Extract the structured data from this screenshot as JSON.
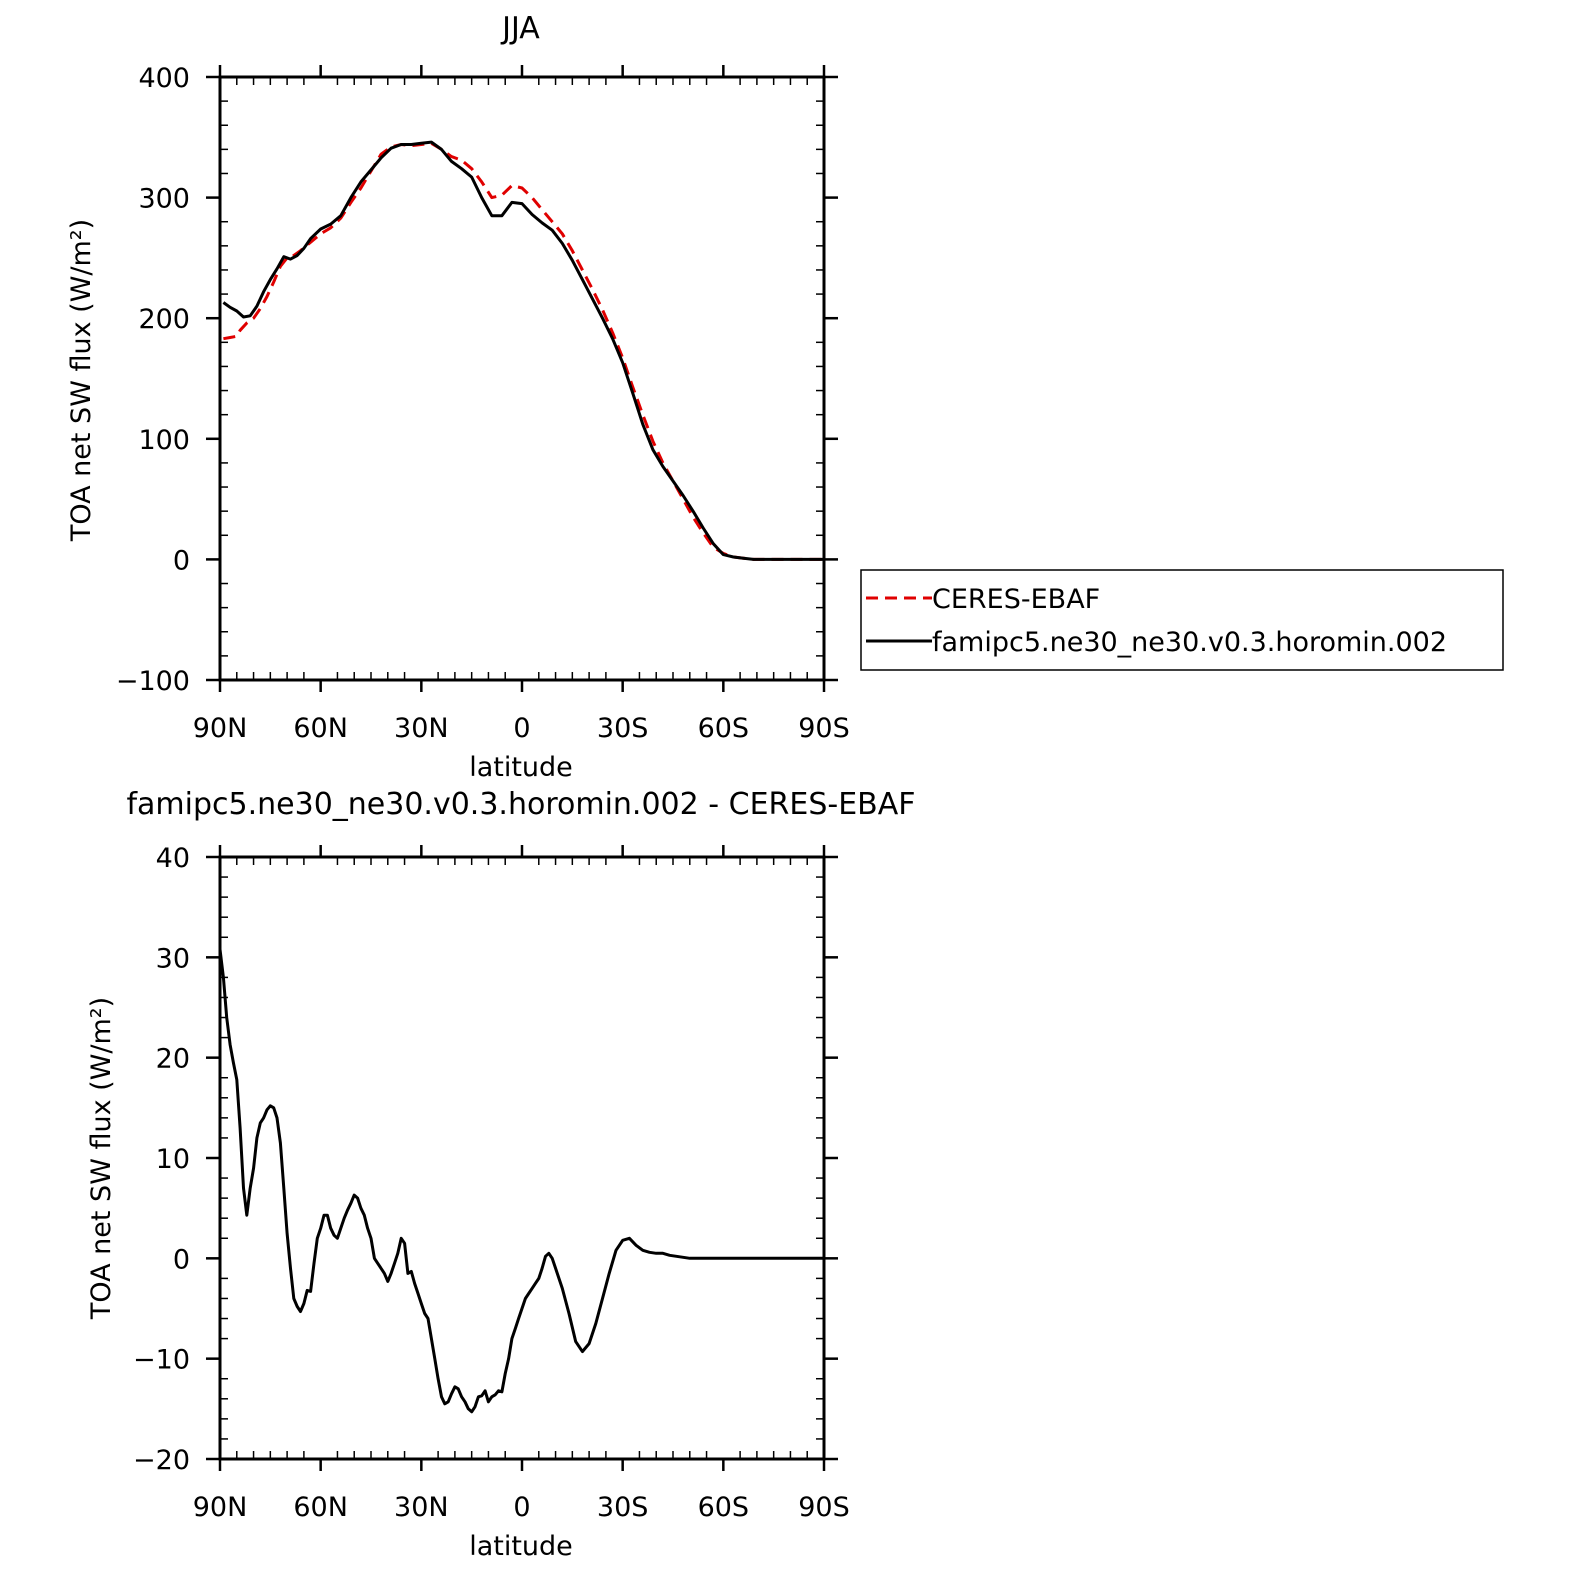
{
  "chart_data": [
    {
      "type": "line",
      "title": "JJA",
      "xlabel": "latitude",
      "ylabel": "TOA net SW flux (W/m²)",
      "ylim": [
        -100,
        400
      ],
      "xlim": [
        90,
        -90
      ],
      "yticks": [
        -100,
        0,
        100,
        200,
        300,
        400
      ],
      "xticks": [
        90,
        60,
        30,
        0,
        -30,
        -60,
        -90
      ],
      "xtick_labels": [
        "90N",
        "60N",
        "30N",
        "0",
        "30S",
        "60S",
        "90S"
      ],
      "legend": {
        "placement": "right-outside"
      },
      "series": [
        {
          "name": "CERES-EBAF",
          "color": "#e00000",
          "style": "dashed",
          "x": [
            89,
            87,
            85,
            84,
            82,
            80,
            78,
            76,
            74,
            72,
            70,
            68,
            66,
            63,
            60,
            57,
            54,
            51,
            48,
            45,
            42,
            39,
            36,
            33,
            30,
            27,
            24,
            21,
            18,
            15,
            12,
            9,
            6,
            3,
            0,
            -3,
            -6,
            -9,
            -12,
            -15,
            -18,
            -21,
            -24,
            -27,
            -30,
            -33,
            -36,
            -39,
            -42,
            -45,
            -48,
            -51,
            -54,
            -57,
            -60,
            -63,
            -66,
            -69,
            -72,
            -75,
            -78,
            -81,
            -84,
            -87,
            -90
          ],
          "y": [
            183,
            184,
            185,
            190,
            196,
            200,
            208,
            218,
            230,
            243,
            250,
            252,
            256,
            263,
            270,
            275,
            283,
            296,
            308,
            322,
            336,
            342,
            344,
            343,
            344,
            345,
            340,
            334,
            331,
            324,
            313,
            300,
            302,
            310,
            308,
            300,
            290,
            280,
            270,
            256,
            240,
            224,
            207,
            188,
            167,
            143,
            120,
            98,
            80,
            65,
            50,
            35,
            22,
            10,
            5,
            2,
            1,
            0,
            0,
            0,
            0,
            0,
            0,
            0,
            0
          ]
        },
        {
          "name": "famipc5.ne30_ne30.v0.3.horomin.002",
          "color": "#000000",
          "style": "solid",
          "x": [
            89,
            87,
            85,
            83,
            81,
            79,
            77,
            75,
            73,
            71,
            69,
            67,
            65,
            63,
            60,
            57,
            54,
            51,
            48,
            45,
            42,
            39,
            36,
            33,
            30,
            27,
            24,
            21,
            18,
            15,
            12,
            9,
            6,
            3,
            0,
            -3,
            -6,
            -9,
            -12,
            -15,
            -18,
            -21,
            -24,
            -27,
            -30,
            -33,
            -36,
            -39,
            -42,
            -45,
            -48,
            -51,
            -54,
            -57,
            -60,
            -63,
            -66,
            -69,
            -72,
            -75,
            -78,
            -81,
            -84,
            -87,
            -90
          ],
          "y": [
            213,
            209,
            206,
            201,
            202,
            210,
            222,
            232,
            241,
            251,
            249,
            252,
            258,
            266,
            274,
            278,
            285,
            300,
            313,
            323,
            333,
            341,
            344,
            344,
            345,
            346,
            340,
            330,
            324,
            317,
            300,
            285,
            285,
            296,
            295,
            286,
            279,
            273,
            262,
            248,
            232,
            216,
            200,
            183,
            163,
            138,
            112,
            91,
            77,
            65,
            53,
            40,
            26,
            13,
            4,
            2,
            1,
            0,
            0,
            0,
            0,
            0,
            0,
            0,
            0
          ]
        }
      ]
    },
    {
      "type": "line",
      "title": "famipc5.ne30_ne30.v0.3.horomin.002 - CERES-EBAF",
      "xlabel": "latitude",
      "ylabel": "TOA net SW flux (W/m²)",
      "ylim": [
        -20,
        40
      ],
      "xlim": [
        90,
        -90
      ],
      "yticks": [
        -20,
        -10,
        0,
        10,
        20,
        30,
        40
      ],
      "xticks": [
        90,
        60,
        30,
        0,
        -30,
        -60,
        -90
      ],
      "xtick_labels": [
        "90N",
        "60N",
        "30N",
        "0",
        "30S",
        "60S",
        "90S"
      ],
      "series": [
        {
          "name": "",
          "color": "#000000",
          "style": "solid",
          "x": [
            90,
            89,
            88,
            87,
            86,
            85,
            84,
            83,
            82,
            81,
            80,
            79,
            78,
            77,
            76,
            75,
            74,
            73,
            72,
            71,
            70,
            69,
            68,
            67,
            66,
            65,
            64,
            63,
            62,
            61,
            60,
            59,
            58,
            57,
            56,
            55,
            54,
            53,
            52,
            51,
            50,
            49,
            48,
            47,
            46,
            45,
            44,
            43,
            42,
            41,
            40,
            39,
            38,
            37,
            36,
            35,
            34,
            33,
            32,
            31,
            30,
            29,
            28,
            27,
            26,
            25,
            24,
            23,
            22,
            21,
            20,
            19,
            18,
            17,
            16,
            15,
            14,
            13,
            12,
            11,
            10,
            9,
            8,
            7,
            6,
            5,
            4,
            3,
            2,
            1,
            0,
            -1,
            -2,
            -3,
            -4,
            -5,
            -6,
            -7,
            -8,
            -9,
            -10,
            -12,
            -14,
            -16,
            -18,
            -20,
            -22,
            -24,
            -26,
            -28,
            -30,
            -32,
            -34,
            -36,
            -38,
            -40,
            -42,
            -44,
            -46,
            -48,
            -50,
            -52,
            -54,
            -56,
            -58,
            -60,
            -62,
            -64,
            -66,
            -68,
            -70,
            -72,
            -74,
            -76,
            -78,
            -80,
            -82,
            -84,
            -86,
            -88,
            -90
          ],
          "y": [
            30.8,
            28,
            24,
            21.3,
            19.5,
            17.8,
            13,
            7,
            4.3,
            7,
            9,
            12,
            13.5,
            14,
            14.8,
            15.2,
            15,
            14,
            11.5,
            7,
            2.5,
            -1,
            -4,
            -4.8,
            -5.3,
            -4.5,
            -3.2,
            -3.3,
            -0.5,
            2,
            3,
            4.3,
            4.3,
            3,
            2.3,
            2,
            3,
            4,
            4.8,
            5.5,
            6.3,
            6,
            5,
            4.3,
            3,
            2,
            0,
            -0.5,
            -1,
            -1.5,
            -2.3,
            -1.5,
            -0.5,
            0.5,
            2,
            1.5,
            -1.5,
            -1.3,
            -2.5,
            -3.5,
            -4.5,
            -5.5,
            -6,
            -8,
            -10,
            -12,
            -13.8,
            -14.5,
            -14.3,
            -13.5,
            -12.8,
            -13,
            -13.8,
            -14.3,
            -15,
            -15.3,
            -14.8,
            -13.8,
            -13.7,
            -13.2,
            -14.3,
            -13.8,
            -13.6,
            -13.2,
            -13.3,
            -11.5,
            -10,
            -8,
            -7,
            -6,
            -5,
            -4,
            -3.5,
            -3,
            -2.5,
            -2,
            -1,
            0.2,
            0.5,
            0,
            -1,
            -3,
            -5.5,
            -8.3,
            -9.3,
            -8.5,
            -6.5,
            -4,
            -1.5,
            0.8,
            1.8,
            2,
            1.3,
            0.8,
            0.6,
            0.5,
            0.5,
            0.3,
            0.2,
            0.1,
            0,
            0,
            0,
            0,
            0,
            0,
            0,
            0,
            0,
            0,
            0,
            0,
            0,
            0,
            0,
            0,
            0,
            0,
            0,
            0,
            0
          ]
        }
      ]
    }
  ],
  "legend": {
    "items": [
      {
        "label": "CERES-EBAF",
        "color": "#e00000",
        "style": "dashed"
      },
      {
        "label": "famipc5.ne30_ne30.v0.3.horomin.002",
        "color": "#000000",
        "style": "solid"
      }
    ]
  }
}
